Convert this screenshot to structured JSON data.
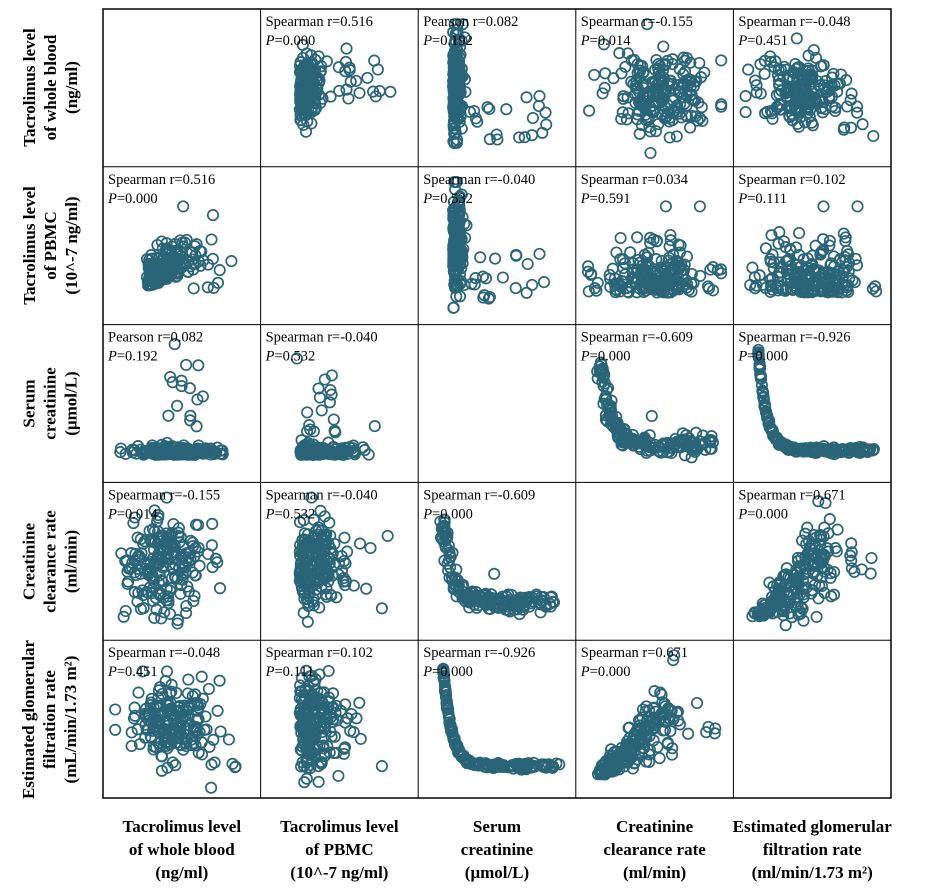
{
  "variables": [
    {
      "short": "whole_blood",
      "label_lines": [
        "Tacrolimus level",
        "of whole blood",
        "(ng/ml)"
      ]
    },
    {
      "short": "pbmc",
      "label_lines": [
        "Tacrolimus level",
        "of PBMC",
        "(10^-7 ng/ml)"
      ]
    },
    {
      "short": "scr",
      "label_lines": [
        "Serum",
        "creatinine",
        "(μmol/L)"
      ]
    },
    {
      "short": "ccr",
      "label_lines": [
        "Creatinine",
        "clearance rate",
        "(ml/min)"
      ]
    },
    {
      "short": "egfr",
      "label_lines": [
        "Estimated glomerular",
        "filtration rate",
        "(mL/min/1.73 m²)"
      ]
    }
  ],
  "x_axis_labels": {
    "whole_blood": [
      "Tacrolimus level",
      "of whole blood",
      "(ng/ml)"
    ],
    "pbmc": [
      "Tacrolimus level",
      "of PBMC",
      "(10^-7 ng/ml)"
    ],
    "scr": [
      "Serum",
      "creatinine",
      "(μmol/L)"
    ],
    "ccr": [
      "Creatinine",
      "clearance rate",
      "(ml/min)"
    ],
    "egfr": [
      "Estimated glomerular",
      "filtration rate",
      "(ml/min/1.73 m²)"
    ]
  },
  "colors": {
    "marker": "#2a6478",
    "border": "#000000"
  },
  "chart_data": {
    "type": "scatter",
    "title": "",
    "layout": "scatterplot-matrix",
    "size": 5,
    "cells": [
      {
        "row": 0,
        "col": 1,
        "method": "Spearman",
        "r": "0.516",
        "p": "0.000",
        "pattern": "pos_cluster"
      },
      {
        "row": 0,
        "col": 2,
        "method": "Pearson",
        "r": "0.082",
        "p": "0.192",
        "pattern": "x_skew_left"
      },
      {
        "row": 0,
        "col": 3,
        "method": "Spearman",
        "r": "-0.155",
        "p": "0.014",
        "pattern": "blob_wide"
      },
      {
        "row": 0,
        "col": 4,
        "method": "Spearman",
        "r": "-0.048",
        "p": "0.451",
        "pattern": "blob_center"
      },
      {
        "row": 1,
        "col": 0,
        "method": "Spearman",
        "r": "0.516",
        "p": "0.000",
        "pattern": "pos_cluster_low"
      },
      {
        "row": 1,
        "col": 2,
        "method": "Spearman",
        "r": "-0.040",
        "p": "0.532",
        "pattern": "x_skew_left"
      },
      {
        "row": 1,
        "col": 3,
        "method": "Spearman",
        "r": "0.034",
        "p": "0.591",
        "pattern": "bottom_wide"
      },
      {
        "row": 1,
        "col": 4,
        "method": "Spearman",
        "r": "0.102",
        "p": "0.111",
        "pattern": "bottom_wide"
      },
      {
        "row": 2,
        "col": 0,
        "method": "Pearson",
        "r": "0.082",
        "p": "0.192",
        "pattern": "flat_bottom"
      },
      {
        "row": 2,
        "col": 1,
        "method": "Spearman",
        "r": "-0.040",
        "p": "0.532",
        "pattern": "flat_bottom_left"
      },
      {
        "row": 2,
        "col": 3,
        "method": "Spearman",
        "r": "-0.609",
        "p": "0.000",
        "pattern": "decay"
      },
      {
        "row": 2,
        "col": 4,
        "method": "Spearman",
        "r": "-0.926",
        "p": "0.000",
        "pattern": "decay_strong"
      },
      {
        "row": 3,
        "col": 0,
        "method": "Spearman",
        "r": "-0.155",
        "p": "0.014",
        "pattern": "blob_tall"
      },
      {
        "row": 3,
        "col": 1,
        "method": "Spearman",
        "r": "-0.040",
        "p": "0.532",
        "pattern": "blob_tall_left"
      },
      {
        "row": 3,
        "col": 2,
        "method": "Spearman",
        "r": "-0.609",
        "p": "0.000",
        "pattern": "decay"
      },
      {
        "row": 3,
        "col": 4,
        "method": "Spearman",
        "r": "0.671",
        "p": "0.000",
        "pattern": "fan_pos"
      },
      {
        "row": 4,
        "col": 0,
        "method": "Spearman",
        "r": "-0.048",
        "p": "0.451",
        "pattern": "blob_center"
      },
      {
        "row": 4,
        "col": 1,
        "method": "Spearman",
        "r": "0.102",
        "p": "0.111",
        "pattern": "blob_tall_left"
      },
      {
        "row": 4,
        "col": 2,
        "method": "Spearman",
        "r": "-0.926",
        "p": "0.000",
        "pattern": "decay_strong"
      },
      {
        "row": 4,
        "col": 3,
        "method": "Spearman",
        "r": "0.671",
        "p": "0.000",
        "pattern": "fan_pos"
      }
    ]
  }
}
